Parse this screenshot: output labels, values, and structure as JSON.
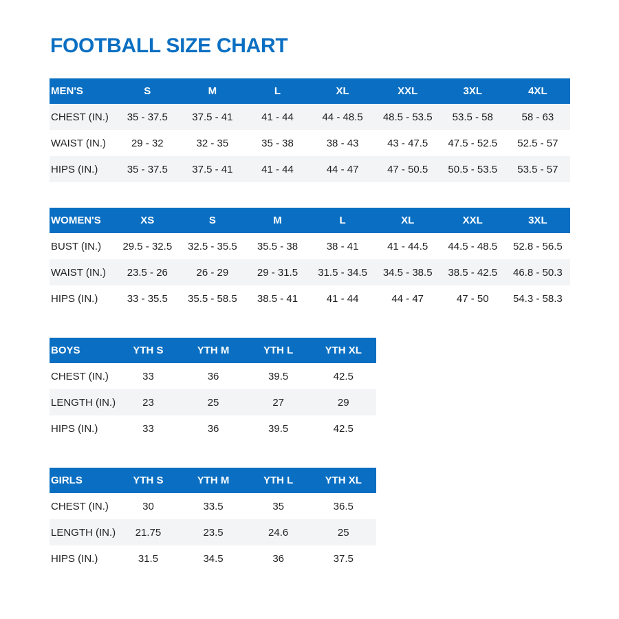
{
  "title": "FOOTBALL SIZE CHART",
  "colors": {
    "header_bg": "#0a6fc2",
    "stripe": "#f3f4f6",
    "title": "#0a6fc2"
  },
  "tables": [
    {
      "header": [
        "MEN'S",
        "S",
        "M",
        "L",
        "XL",
        "XXL",
        "3XL",
        "4XL"
      ],
      "rows": [
        [
          "CHEST (IN.)",
          "35 - 37.5",
          "37.5 - 41",
          "41 - 44",
          "44 - 48.5",
          "48.5 - 53.5",
          "53.5 - 58",
          "58 - 63"
        ],
        [
          "WAIST (IN.)",
          "29 - 32",
          "32 - 35",
          "35 - 38",
          "38 - 43",
          "43 - 47.5",
          "47.5 - 52.5",
          "52.5 - 57"
        ],
        [
          "HIPS (IN.)",
          "35 - 37.5",
          "37.5 - 41",
          "41 - 44",
          "44 - 47",
          "47 - 50.5",
          "50.5 - 53.5",
          "53.5 - 57"
        ]
      ]
    },
    {
      "header": [
        "WOMEN'S",
        "XS",
        "S",
        "M",
        "L",
        "XL",
        "XXL",
        "3XL"
      ],
      "rows": [
        [
          "BUST (IN.)",
          "29.5 - 32.5",
          "32.5 - 35.5",
          "35.5 - 38",
          "38 - 41",
          "41 - 44.5",
          "44.5 - 48.5",
          "52.8 - 56.5"
        ],
        [
          "WAIST (IN.)",
          "23.5 - 26",
          "26 - 29",
          "29 - 31.5",
          "31.5 - 34.5",
          "34.5 - 38.5",
          "38.5 - 42.5",
          "46.8 - 50.3"
        ],
        [
          "HIPS (IN.)",
          "33 - 35.5",
          "35.5 - 58.5",
          "38.5 - 41",
          "41 - 44",
          "44 - 47",
          "47 - 50",
          "54.3 - 58.3"
        ]
      ]
    },
    {
      "header": [
        "BOYS",
        "YTH S",
        "YTH M",
        "YTH L",
        "YTH XL"
      ],
      "rows": [
        [
          "CHEST (IN.)",
          "33",
          "36",
          "39.5",
          "42.5"
        ],
        [
          "LENGTH (IN.)",
          "23",
          "25",
          "27",
          "29"
        ],
        [
          "HIPS (IN.)",
          "33",
          "36",
          "39.5",
          "42.5"
        ]
      ]
    },
    {
      "header": [
        "GIRLS",
        "YTH S",
        "YTH M",
        "YTH L",
        "YTH XL"
      ],
      "rows": [
        [
          "CHEST (IN.)",
          "30",
          "33.5",
          "35",
          "36.5"
        ],
        [
          "LENGTH (IN.)",
          "21.75",
          "23.5",
          "24.6",
          "25"
        ],
        [
          "HIPS (IN.)",
          "31.5",
          "34.5",
          "36",
          "37.5"
        ]
      ]
    }
  ]
}
